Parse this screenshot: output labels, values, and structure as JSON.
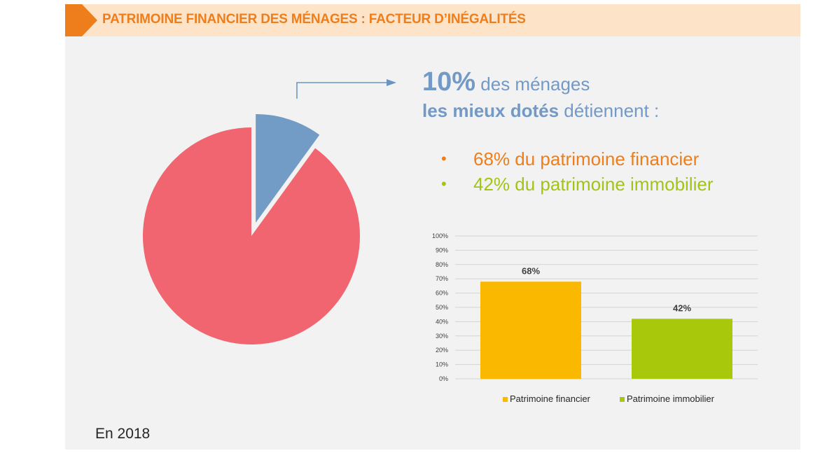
{
  "header": {
    "title": "PATRIMOINE FINANCIER DES MÉNAGES : FACTEUR D’INÉGALITÉS"
  },
  "headline": {
    "percent": "10%",
    "line1_rest": " des ménages",
    "line2_bold": "les mieux dotés",
    "line2_rest": " détiennent :"
  },
  "bullets": [
    {
      "text": "68% du patrimoine financier",
      "color": "#ee7e1b"
    },
    {
      "text": "42% du patrimoine immobilier",
      "color": "#a2c417"
    }
  ],
  "footer_note": "En 2018",
  "colors": {
    "accent_orange": "#ee7e1b",
    "header_bg": "#fde4c8",
    "panel_bg": "#f2f2f2",
    "blue_text": "#7399c6"
  },
  "chart_data": [
    {
      "type": "pie",
      "slices": [
        {
          "label": "",
          "value": 10,
          "color": "#729bc5",
          "exploded": true
        },
        {
          "label": "",
          "value": 90,
          "color": "#f16571"
        }
      ]
    },
    {
      "type": "bar",
      "categories": [
        "Patrimoine financier",
        "Patrimoine immobilier"
      ],
      "values": [
        68,
        42
      ],
      "data_labels": [
        "68%",
        "42%"
      ],
      "colors": [
        "#fbb800",
        "#a8c80b"
      ],
      "ylim": [
        0,
        100
      ],
      "yticks": [
        "0%",
        "10%",
        "20%",
        "30%",
        "40%",
        "50%",
        "60%",
        "70%",
        "80%",
        "90%",
        "100%"
      ],
      "grid": true,
      "legend": "bottom",
      "title": "",
      "xlabel": "",
      "ylabel": ""
    }
  ]
}
